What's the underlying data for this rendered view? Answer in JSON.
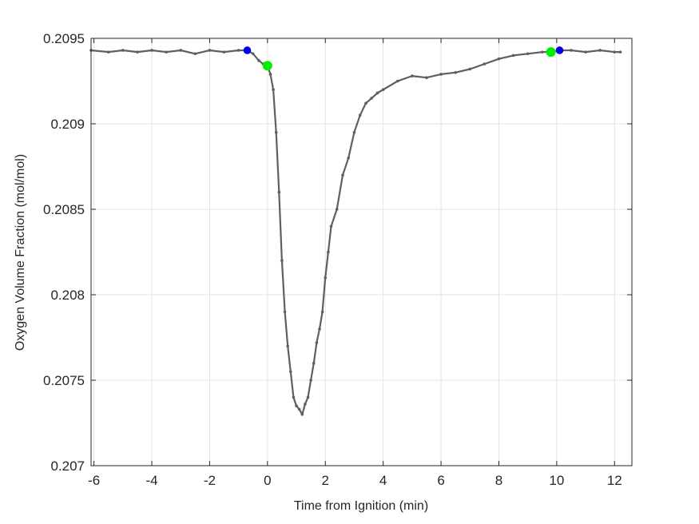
{
  "chart_data": {
    "type": "line",
    "xlabel": "Time from Ignition (min)",
    "ylabel": "Oxygen Volume Fraction (mol/mol)",
    "xlim": [
      -6.1,
      12.6
    ],
    "ylim": [
      0.207,
      0.2095
    ],
    "x_ticks": [
      -6,
      -4,
      -2,
      0,
      2,
      4,
      6,
      8,
      10,
      12
    ],
    "x_tick_labels": [
      "-6",
      "-4",
      "-2",
      "0",
      "2",
      "4",
      "6",
      "8",
      "10",
      "12"
    ],
    "y_ticks": [
      0.207,
      0.2075,
      0.208,
      0.2085,
      0.209,
      0.2095
    ],
    "y_tick_labels": [
      "0.207",
      "0.2075",
      "0.208",
      "0.2085",
      "0.209",
      "0.2095"
    ],
    "grid": true,
    "colors": {
      "series": "#5f5f5f",
      "green_marker": "#00ee00",
      "blue_marker": "#0000ee",
      "grid": "#e3e3e3",
      "axis": "#262626"
    },
    "series": [
      {
        "x": [
          -6.1,
          -5.5,
          -5.0,
          -4.5,
          -4.0,
          -3.5,
          -3.0,
          -2.5,
          -2.0,
          -1.5,
          -1.0,
          -0.7,
          -0.5,
          -0.3,
          -0.15,
          0.0,
          0.1,
          0.2,
          0.3,
          0.4,
          0.5,
          0.6,
          0.7,
          0.8,
          0.9,
          1.0,
          1.1,
          1.2,
          1.3,
          1.4,
          1.5,
          1.6,
          1.7,
          1.8,
          1.9,
          2.0,
          2.1,
          2.2,
          2.4,
          2.6,
          2.8,
          3.0,
          3.2,
          3.4,
          3.6,
          3.8,
          4.0,
          4.5,
          5.0,
          5.5,
          6.0,
          6.5,
          7.0,
          7.5,
          8.0,
          8.5,
          9.0,
          9.5,
          9.8,
          10.1,
          10.5,
          11.0,
          11.5,
          12.0,
          12.2
        ],
        "y": [
          0.20943,
          0.20942,
          0.20943,
          0.20942,
          0.20943,
          0.20942,
          0.20943,
          0.20941,
          0.20943,
          0.20942,
          0.20943,
          0.20943,
          0.20941,
          0.20937,
          0.20935,
          0.20934,
          0.20929,
          0.2092,
          0.20895,
          0.2086,
          0.2082,
          0.2079,
          0.2077,
          0.20755,
          0.2074,
          0.20735,
          0.20733,
          0.2073,
          0.20736,
          0.2074,
          0.2075,
          0.2076,
          0.20772,
          0.2078,
          0.2079,
          0.2081,
          0.20825,
          0.2084,
          0.2085,
          0.2087,
          0.2088,
          0.20895,
          0.20905,
          0.20912,
          0.20915,
          0.20918,
          0.2092,
          0.20925,
          0.20928,
          0.20927,
          0.20929,
          0.2093,
          0.20932,
          0.20935,
          0.20938,
          0.2094,
          0.20941,
          0.20942,
          0.20942,
          0.20943,
          0.20943,
          0.20942,
          0.20943,
          0.20942,
          0.20942
        ]
      }
    ],
    "markers": [
      {
        "x": 0.0,
        "y": 0.20934,
        "color": "#00ee00"
      },
      {
        "x": 9.8,
        "y": 0.20942,
        "color": "#00ee00"
      },
      {
        "x": -0.7,
        "y": 0.20943,
        "color": "#0000ee"
      },
      {
        "x": 10.1,
        "y": 0.20943,
        "color": "#0000ee"
      }
    ]
  }
}
